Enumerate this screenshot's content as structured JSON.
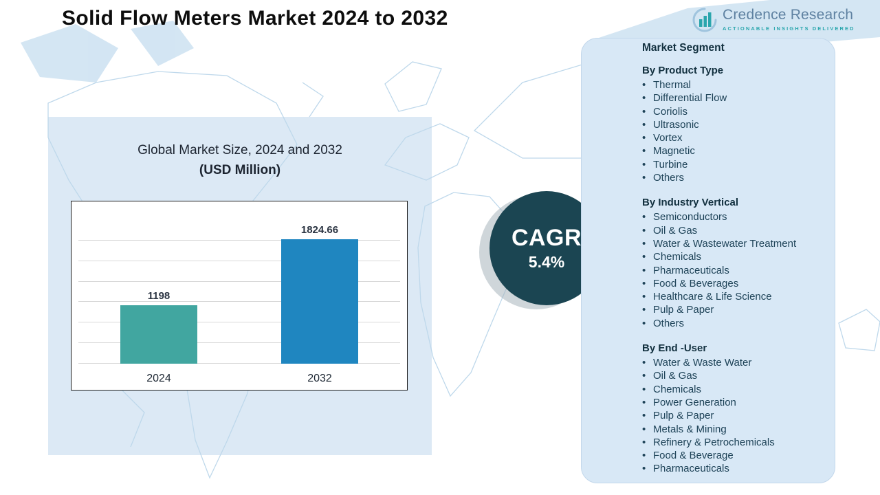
{
  "header": {
    "title": "Solid Flow Meters Market  2024 to 2032"
  },
  "logo": {
    "brand": "Credence Research",
    "tagline": "Actionable Insights Delivered"
  },
  "chart_panel": {
    "title": "Global Market Size, 2024 and 2032",
    "subtitle": "(USD Million)"
  },
  "chart_data": {
    "type": "bar",
    "title": "Global Market Size, 2024 and 2032",
    "units": "USD Million",
    "categories": [
      "2024",
      "2032"
    ],
    "values": [
      1198,
      1824.66
    ],
    "value_labels": [
      "1198",
      "1824.66"
    ],
    "bar_colors": [
      "#41a6a0",
      "#1f86c0"
    ],
    "ylim": [
      650,
      2100
    ],
    "gridlines": 7,
    "grid": true,
    "legend": false
  },
  "cagr": {
    "label": "CAGR",
    "value": "5.4%"
  },
  "segments": {
    "title": "Market Segment",
    "groups": [
      {
        "heading": "By Product Type",
        "items": [
          "Thermal",
          "Differential Flow",
          "Coriolis",
          "Ultrasonic",
          "Vortex",
          "Magnetic",
          "Turbine",
          "Others"
        ]
      },
      {
        "heading": "By Industry Vertical",
        "items": [
          "Semiconductors",
          "Oil & Gas",
          "Water & Wastewater Treatment",
          "Chemicals",
          "Pharmaceuticals",
          "Food & Beverages",
          "Healthcare & Life Science",
          "Pulp & Paper",
          "Others"
        ]
      },
      {
        "heading": "By End -User",
        "items": [
          "Water & Waste Water",
          "Oil & Gas",
          "Chemicals",
          "Power Generation",
          "Pulp & Paper",
          "Metals & Mining",
          "Refinery & Petrochemicals",
          "Food & Beverage",
          "Pharmaceuticals"
        ]
      }
    ]
  },
  "colors": {
    "bar_2024": "#41a6a0",
    "bar_2032": "#1f86c0",
    "cagr_circle": "#1b4552",
    "panel_bg": "#d8e8f6",
    "chart_panel_bg": "#dce9f5",
    "map_line": "#bed8eb",
    "accent_teal": "#2ba6ad"
  }
}
